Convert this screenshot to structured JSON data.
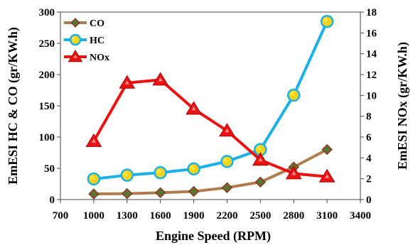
{
  "chart_data": {
    "type": "line",
    "title": "",
    "xlabel": "Engine Speed (RPM)",
    "ylabel_left": "EmESI HC & CO (gr/KW.h)",
    "ylabel_right": "EmESI NOx (gr/KW.h)",
    "x": [
      1000,
      1300,
      1600,
      1900,
      2200,
      2500,
      2800,
      3100
    ],
    "xlim": [
      700,
      3400
    ],
    "xticks": [
      "700",
      "1000",
      "1300",
      "1600",
      "1900",
      "2200",
      "2500",
      "2800",
      "3100",
      "3400"
    ],
    "ylim_left": [
      0,
      300
    ],
    "yticks_left": [
      "0",
      "50",
      "100",
      "150",
      "200",
      "250",
      "300"
    ],
    "ylim_right": [
      0,
      18
    ],
    "yticks_right": [
      "0",
      "2",
      "4",
      "6",
      "8",
      "10",
      "12",
      "14",
      "16",
      "18"
    ],
    "grid": false,
    "legend_position": "top-left",
    "series": [
      {
        "name": "CO",
        "axis": "left",
        "marker": "diamond",
        "line_color": "#b07d4f",
        "marker_color": "#8b5a2b",
        "marker_inner": "#2e8b3a",
        "values": [
          9,
          9.5,
          11,
          13,
          19,
          28,
          52,
          80
        ]
      },
      {
        "name": "HC",
        "axis": "left",
        "marker": "circle",
        "line_color": "#1ab0e8",
        "marker_color": "#f2d21b",
        "marker_inner": "#ffe640",
        "values": [
          33,
          39,
          43,
          49,
          61,
          80,
          167,
          285
        ]
      },
      {
        "name": "NOx",
        "axis": "right",
        "marker": "triangle",
        "line_color": "#ee1111",
        "marker_color": "#ee1111",
        "marker_inner": "#ffffff",
        "values": [
          5.6,
          11.2,
          11.5,
          8.7,
          6.6,
          3.8,
          2.5,
          2.2
        ]
      }
    ]
  }
}
